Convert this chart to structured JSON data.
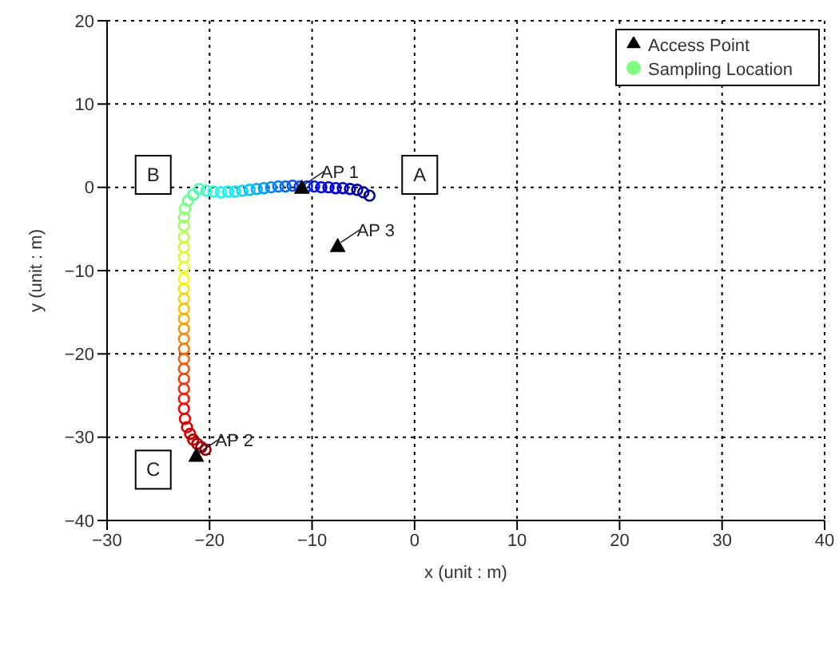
{
  "chart_data": {
    "type": "scatter",
    "xlabel": "x (unit : m)",
    "ylabel": "y (unit : m)",
    "xlim": [
      -30,
      40
    ],
    "ylim": [
      -40,
      20
    ],
    "xticks": [
      -30,
      -20,
      -10,
      0,
      10,
      20,
      30,
      40
    ],
    "yticks": [
      -40,
      -30,
      -20,
      -10,
      0,
      10,
      20
    ],
    "grid": true,
    "legend": "top right",
    "series": [
      {
        "name": "Sampling Location",
        "color": "#80ff7f",
        "marker": "circle",
        "x": [
          -4.4,
          -5,
          -5.6,
          -6.3,
          -7,
          -7.7,
          -8.4,
          -9.1,
          -9.8,
          -10.5,
          -11.2,
          -11.9,
          -12.6,
          -13.3,
          -14,
          -14.7,
          -15.4,
          -16.1,
          -16.8,
          -17.5,
          -18.2,
          -18.9,
          -19.6,
          -20.3,
          -21,
          -21.6,
          -22.1,
          -22.4,
          -22.5,
          -22.5,
          -22.5,
          -22.5,
          -22.5,
          -22.5,
          -22.5,
          -22.5,
          -22.5,
          -22.5,
          -22.5,
          -22.5,
          -22.5,
          -22.5,
          -22.5,
          -22.5,
          -22.5,
          -22.5,
          -22.5,
          -22.5,
          -22.4,
          -22.2,
          -21.9,
          -21.6,
          -21.2,
          -20.8,
          -20.4
        ],
        "values": [
          -1,
          -0.6,
          -0.3,
          -0.2,
          -0.1,
          -0.1,
          0,
          0,
          0.1,
          0.1,
          0.1,
          0.2,
          0.1,
          0.1,
          0,
          -0.1,
          -0.2,
          -0.3,
          -0.4,
          -0.5,
          -0.5,
          -0.6,
          -0.5,
          -0.4,
          -0.2,
          -0.9,
          -1.6,
          -2.6,
          -3.6,
          -4.6,
          -6,
          -7.2,
          -8.4,
          -9.6,
          -11,
          -12.2,
          -13.4,
          -14.6,
          -15.8,
          -17,
          -18.2,
          -19.4,
          -20.6,
          -21.8,
          -23,
          -24.2,
          -25.4,
          -26.6,
          -27.8,
          -28.8,
          -29.6,
          -30.3,
          -30.8,
          -31.2,
          -31.5
        ],
        "colors": [
          "#00008f",
          "#0000a0",
          "#0000b0",
          "#0000c0",
          "#0000d0",
          "#0000e0",
          "#0000f0",
          "#0000ff",
          "#0018ff",
          "#002bff",
          "#003eff",
          "#0051ff",
          "#0064ff",
          "#0077ff",
          "#008aff",
          "#009dff",
          "#00b0ff",
          "#00c3ff",
          "#00d6ff",
          "#00e9ff",
          "#00fcff",
          "#0efff1",
          "#21ffde",
          "#34ffcb",
          "#47ffb8",
          "#5affa5",
          "#6dff92",
          "#80ff7f",
          "#93ff6c",
          "#a6ff59",
          "#b9ff46",
          "#ccff33",
          "#dfff20",
          "#f2ff0d",
          "#fffa00",
          "#ffe700",
          "#ffd400",
          "#ffc100",
          "#ffae00",
          "#ff9b00",
          "#ff8800",
          "#ff7500",
          "#ff6200",
          "#ff4f00",
          "#ff3c00",
          "#ff2900",
          "#ff1600",
          "#ff0300",
          "#f00000",
          "#e00000",
          "#d00000",
          "#c00000",
          "#b00000",
          "#a00000",
          "#900000"
        ]
      },
      {
        "name": "Access Point",
        "color": "#000000",
        "marker": "triangle",
        "x": [
          -11,
          -21.3,
          -7.5
        ],
        "values": [
          0,
          -32.2,
          -7
        ]
      }
    ],
    "annotations": [
      {
        "text": "AP 1",
        "x": -11,
        "y": 0
      },
      {
        "text": "AP 2",
        "x": -21.3,
        "y": -32.2
      },
      {
        "text": "AP 3",
        "x": -7.5,
        "y": -7
      },
      {
        "text": "A",
        "x": 0.5,
        "y": 1.5
      },
      {
        "text": "B",
        "x": -25.5,
        "y": 1.5
      },
      {
        "text": "C",
        "x": -25.5,
        "y": -33.9
      }
    ]
  }
}
